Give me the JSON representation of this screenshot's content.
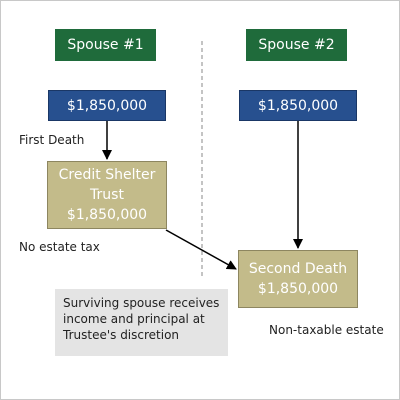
{
  "spouse1": {
    "title": "Spouse #1",
    "amount": "$1,850,000"
  },
  "spouse2": {
    "title": "Spouse #2",
    "amount": "$1,850,000"
  },
  "first_death_label": "First Death",
  "credit_shelter": {
    "line1": "Credit Shelter",
    "line2": "Trust",
    "amount": "$1,850,000"
  },
  "no_estate_tax_label": "No estate tax",
  "second_death": {
    "line1": "Second Death",
    "amount": "$1,850,000"
  },
  "note": {
    "line1": "Surviving spouse receives",
    "line2": "income and principal at",
    "line3": "Trustee's discretion"
  },
  "non_taxable_label": "Non-taxable estate",
  "colors": {
    "header_green": "#1f6b3b",
    "amount_blue": "#27508f",
    "trust_tan": "#c3bb8a",
    "note_gray": "#e4e4e4"
  }
}
